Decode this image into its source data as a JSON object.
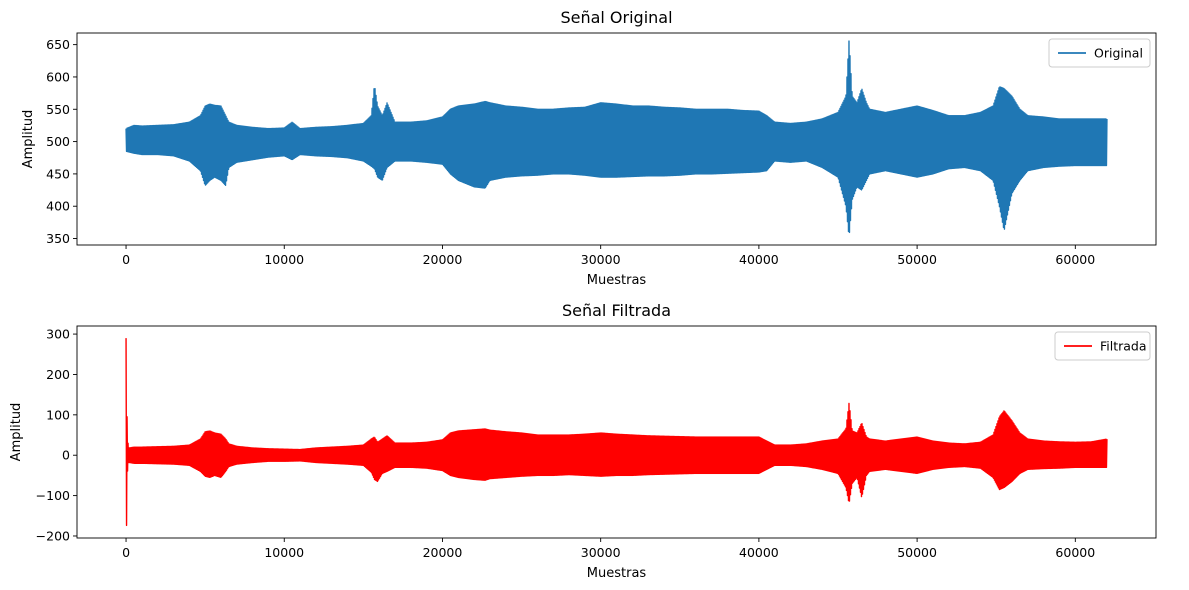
{
  "chart_data": [
    {
      "type": "line",
      "title": "Señal Original",
      "xlabel": "Muestras",
      "ylabel": "Amplitud",
      "xlim": [
        -3100,
        65100
      ],
      "ylim": [
        340,
        668
      ],
      "xticks": [
        0,
        10000,
        20000,
        30000,
        40000,
        50000,
        60000
      ],
      "xtick_labels": [
        "0",
        "10000",
        "20000",
        "30000",
        "40000",
        "50000",
        "60000"
      ],
      "yticks": [
        350,
        400,
        450,
        500,
        550,
        600,
        650
      ],
      "ytick_labels": [
        "350",
        "400",
        "450",
        "500",
        "550",
        "600",
        "650"
      ],
      "grid": false,
      "legend_position": "top-right",
      "series": [
        {
          "name": "Original",
          "color": "#1f77b4",
          "envelope_x": [
            0,
            500,
            1000,
            2000,
            3000,
            4000,
            4700,
            5000,
            5300,
            5600,
            6000,
            6300,
            6500,
            7000,
            8000,
            9000,
            10000,
            10500,
            11000,
            12000,
            13000,
            14000,
            15000,
            15500,
            15700,
            15900,
            16200,
            16500,
            17000,
            18000,
            19000,
            20000,
            20500,
            21000,
            22000,
            22700,
            23000,
            24000,
            25000,
            26000,
            27000,
            28000,
            29000,
            30000,
            31000,
            32000,
            33000,
            34000,
            35000,
            36000,
            37000,
            38000,
            39000,
            40000,
            40500,
            41000,
            42000,
            43000,
            44000,
            45000,
            45500,
            45700,
            45900,
            46200,
            46500,
            46800,
            47000,
            48000,
            49000,
            50000,
            51000,
            52000,
            53000,
            54000,
            54800,
            55200,
            55500,
            56000,
            56500,
            57000,
            58000,
            59000,
            60000,
            61000,
            62000
          ],
          "upper": [
            520,
            525,
            524,
            525,
            526,
            530,
            540,
            555,
            558,
            556,
            555,
            540,
            530,
            525,
            522,
            520,
            521,
            530,
            520,
            522,
            523,
            525,
            528,
            540,
            588,
            555,
            540,
            560,
            530,
            530,
            532,
            538,
            550,
            555,
            558,
            562,
            560,
            555,
            553,
            550,
            550,
            552,
            553,
            560,
            558,
            555,
            555,
            553,
            552,
            550,
            550,
            550,
            548,
            547,
            540,
            530,
            528,
            530,
            535,
            545,
            570,
            658,
            570,
            560,
            582,
            560,
            550,
            545,
            550,
            555,
            548,
            540,
            540,
            545,
            555,
            585,
            582,
            570,
            550,
            540,
            538,
            535,
            535,
            535,
            535
          ],
          "lower": [
            485,
            482,
            480,
            480,
            478,
            470,
            455,
            432,
            440,
            445,
            440,
            432,
            460,
            468,
            472,
            476,
            478,
            472,
            480,
            478,
            477,
            475,
            470,
            462,
            458,
            445,
            440,
            460,
            470,
            470,
            468,
            465,
            450,
            440,
            430,
            428,
            440,
            445,
            447,
            448,
            450,
            450,
            448,
            445,
            445,
            446,
            447,
            447,
            448,
            450,
            450,
            451,
            452,
            453,
            455,
            470,
            468,
            470,
            460,
            445,
            400,
            352,
            410,
            430,
            425,
            440,
            450,
            455,
            450,
            445,
            450,
            458,
            460,
            455,
            440,
            400,
            362,
            420,
            440,
            455,
            460,
            462,
            463,
            463,
            463
          ]
        }
      ]
    },
    {
      "type": "line",
      "title": "Señal Filtrada",
      "xlabel": "Muestras",
      "ylabel": "Amplitud",
      "xlim": [
        -3100,
        65100
      ],
      "ylim": [
        -205,
        320
      ],
      "xticks": [
        0,
        10000,
        20000,
        30000,
        40000,
        50000,
        60000
      ],
      "xtick_labels": [
        "0",
        "10000",
        "20000",
        "30000",
        "40000",
        "50000",
        "60000"
      ],
      "yticks": [
        -200,
        -100,
        0,
        100,
        200,
        300
      ],
      "ytick_labels": [
        "−200",
        "−100",
        "0",
        "100",
        "200",
        "300"
      ],
      "grid": false,
      "legend_position": "top-right",
      "series": [
        {
          "name": "Filtrada",
          "color": "#ff0000",
          "spike_x": [
            0,
            30,
            60,
            100,
            150
          ],
          "spike_upper": [
            290,
            292,
            100,
            40,
            20
          ],
          "spike_lower": [
            -175,
            -178,
            -100,
            -30,
            -20
          ],
          "envelope_x": [
            200,
            500,
            1000,
            2000,
            3000,
            4000,
            4700,
            5000,
            5300,
            5600,
            6000,
            6300,
            6500,
            7000,
            8000,
            9000,
            10000,
            11000,
            12000,
            13000,
            14000,
            15000,
            15500,
            15700,
            15900,
            16200,
            16500,
            17000,
            18000,
            19000,
            20000,
            20500,
            21000,
            22000,
            22700,
            23000,
            24000,
            25000,
            26000,
            27000,
            28000,
            29000,
            30000,
            31000,
            32000,
            33000,
            34000,
            35000,
            36000,
            37000,
            38000,
            39000,
            40000,
            40500,
            41000,
            42000,
            43000,
            44000,
            45000,
            45500,
            45700,
            45900,
            46200,
            46500,
            46800,
            47000,
            48000,
            49000,
            50000,
            51000,
            52000,
            53000,
            54000,
            54800,
            55200,
            55500,
            56000,
            56500,
            57000,
            58000,
            59000,
            60000,
            61000,
            62000
          ],
          "upper": [
            18,
            20,
            20,
            21,
            22,
            25,
            40,
            58,
            60,
            55,
            52,
            40,
            28,
            22,
            18,
            16,
            15,
            14,
            18,
            20,
            22,
            25,
            40,
            45,
            32,
            40,
            48,
            30,
            30,
            32,
            38,
            55,
            60,
            63,
            65,
            62,
            58,
            55,
            50,
            50,
            50,
            52,
            55,
            52,
            50,
            48,
            47,
            46,
            45,
            45,
            45,
            45,
            45,
            35,
            25,
            25,
            28,
            35,
            40,
            65,
            130,
            60,
            55,
            80,
            45,
            40,
            35,
            40,
            45,
            35,
            30,
            28,
            32,
            50,
            95,
            110,
            85,
            55,
            40,
            35,
            33,
            32,
            33,
            40
          ],
          "lower": [
            -18,
            -20,
            -20,
            -21,
            -22,
            -25,
            -40,
            -52,
            -55,
            -50,
            -55,
            -40,
            -28,
            -22,
            -18,
            -15,
            -15,
            -14,
            -18,
            -20,
            -22,
            -25,
            -42,
            -60,
            -65,
            -45,
            -40,
            -30,
            -30,
            -32,
            -38,
            -50,
            -55,
            -60,
            -62,
            -58,
            -55,
            -52,
            -50,
            -50,
            -48,
            -50,
            -52,
            -50,
            -50,
            -48,
            -47,
            -46,
            -45,
            -45,
            -45,
            -45,
            -45,
            -35,
            -25,
            -25,
            -28,
            -35,
            -45,
            -80,
            -120,
            -70,
            -55,
            -105,
            -50,
            -40,
            -35,
            -40,
            -45,
            -35,
            -30,
            -28,
            -32,
            -55,
            -85,
            -80,
            -65,
            -45,
            -35,
            -33,
            -32,
            -30,
            -30,
            -30
          ]
        }
      ]
    }
  ]
}
